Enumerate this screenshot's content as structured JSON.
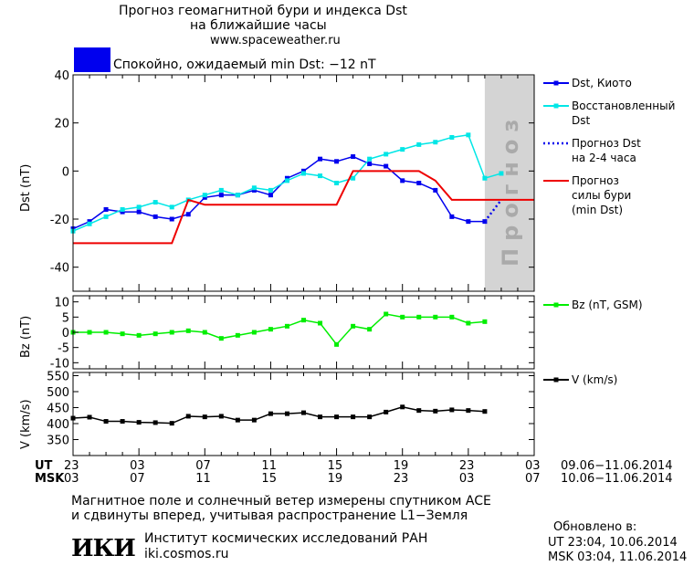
{
  "header": {
    "title_line1": "Прогноз геомагнитной бури и индекса Dst",
    "title_line2": "на ближайшие часы",
    "website": "www.spaceweather.ru",
    "status_text": "Спокойно, ожидаемый min Dst: −12 nT",
    "status_color": "#0000ee"
  },
  "chart_data": [
    {
      "type": "line",
      "ylabel": "Dst (nT)",
      "ylim": [
        -50,
        40
      ],
      "yticks": [
        -40,
        -20,
        0,
        20,
        40
      ],
      "x_hours_ut": [
        23,
        51
      ],
      "forecast_region": [
        48,
        51
      ],
      "forecast_label": "Прогноз",
      "series": [
        {
          "name": "Dst, Киото",
          "legend_label": "Dst, Киото",
          "color": "#0000ee",
          "marker": "square",
          "x": [
            23,
            24,
            25,
            26,
            27,
            28,
            29,
            30,
            31,
            32,
            33,
            34,
            35,
            36,
            37,
            38,
            39,
            40,
            41,
            42,
            43,
            44,
            45,
            46,
            47,
            48
          ],
          "y": [
            -24,
            -21,
            -16,
            -17,
            -17,
            -19,
            -20,
            -18,
            -11,
            -10,
            -10,
            -8,
            -10,
            -3,
            0,
            5,
            4,
            6,
            3,
            2,
            -4,
            -5,
            -8,
            -19,
            -21,
            -21
          ]
        },
        {
          "name": "Восстановленный Dst",
          "legend_label": [
            "Восстановленный",
            "Dst"
          ],
          "color": "#00e6e6",
          "marker": "square",
          "x": [
            23,
            24,
            25,
            26,
            27,
            28,
            29,
            30,
            31,
            32,
            33,
            34,
            35,
            36,
            37,
            38,
            39,
            40,
            41,
            42,
            43,
            44,
            45,
            46,
            47,
            48,
            49
          ],
          "y": [
            -25,
            -22,
            -19,
            -16,
            -15,
            -13,
            -15,
            -12,
            -10,
            -8,
            -10,
            -7,
            -8,
            -4,
            -1,
            -2,
            -5,
            -3,
            5,
            7,
            9,
            11,
            12,
            14,
            15,
            -3,
            -1
          ]
        },
        {
          "name": "Прогноз Dst на 2-4 часа",
          "legend_label": [
            "Прогноз Dst",
            "на 2-4 часа"
          ],
          "color": "#0000ee",
          "dashed": true,
          "x": [
            48,
            49
          ],
          "y": [
            -21,
            -12
          ]
        },
        {
          "name": "Прогноз силы бури (min Dst)",
          "legend_label": [
            "Прогноз",
            "силы бури",
            "(min Dst)"
          ],
          "color": "#ee0000",
          "step": true,
          "x": [
            23,
            29,
            30,
            31,
            39,
            40,
            42,
            43,
            44,
            45,
            46,
            51
          ],
          "y": [
            -30,
            -30,
            -12,
            -14,
            -14,
            0,
            0,
            0,
            0,
            -4,
            -12,
            -12
          ]
        }
      ]
    },
    {
      "type": "line",
      "ylabel": "Bz (nT)",
      "ylim": [
        -12,
        12
      ],
      "yticks": [
        -10,
        -5,
        0,
        5,
        10
      ],
      "series": [
        {
          "name": "Bz (nT, GSM)",
          "legend_label": "Bz (nT, GSM)",
          "color": "#00ee00",
          "marker": "square",
          "x": [
            23,
            24,
            25,
            26,
            27,
            28,
            29,
            30,
            31,
            32,
            33,
            34,
            35,
            36,
            37,
            38,
            39,
            40,
            41,
            42,
            43,
            44,
            45,
            46,
            47,
            48
          ],
          "y": [
            0,
            0,
            0,
            -0.5,
            -1,
            -0.5,
            0,
            0.5,
            0,
            -2,
            -1,
            0,
            1,
            2,
            4,
            3,
            -4,
            2,
            1,
            6,
            5,
            5,
            5,
            5,
            3,
            3.5
          ]
        }
      ]
    },
    {
      "type": "line",
      "ylabel": "V (km/s)",
      "ylim": [
        300,
        560
      ],
      "yticks": [
        350,
        400,
        450,
        500,
        550
      ],
      "series": [
        {
          "name": "V (km/s)",
          "legend_label": "V (km/s)",
          "color": "#000000",
          "marker": "square",
          "x": [
            23,
            24,
            25,
            26,
            27,
            28,
            29,
            30,
            31,
            32,
            33,
            34,
            35,
            36,
            37,
            38,
            39,
            40,
            41,
            42,
            43,
            44,
            45,
            46,
            47,
            48
          ],
          "y": [
            417,
            420,
            407,
            407,
            404,
            403,
            401,
            423,
            421,
            423,
            411,
            411,
            431,
            431,
            434,
            421,
            421,
            421,
            421,
            436,
            452,
            441,
            439,
            443,
            441,
            438
          ]
        }
      ]
    }
  ],
  "x_axis": {
    "ut_label": "UT",
    "msk_label": "MSK",
    "ut_ticks": [
      "23",
      "03",
      "07",
      "11",
      "15",
      "19",
      "23",
      "03"
    ],
    "msk_ticks": [
      "03",
      "07",
      "11",
      "15",
      "19",
      "23",
      "03",
      "07"
    ],
    "ut_range": "09.06−11.06.2014",
    "msk_range": "10.06−11.06.2014"
  },
  "footer": {
    "note_line1": "Магнитное поле и солнечный ветер измерены спутником ACE",
    "note_line2": "и сдвинуты вперед, учитывая распространение L1−Земля",
    "logo_text": "ИКИ",
    "institute": "Институт космических исследований РАН",
    "institute_site": "iki.cosmos.ru",
    "updated_label": "Обновлено в:",
    "updated_ut": "UT  23:04, 10.06.2014",
    "updated_msk": "MSK 03:04, 11.06.2014"
  }
}
